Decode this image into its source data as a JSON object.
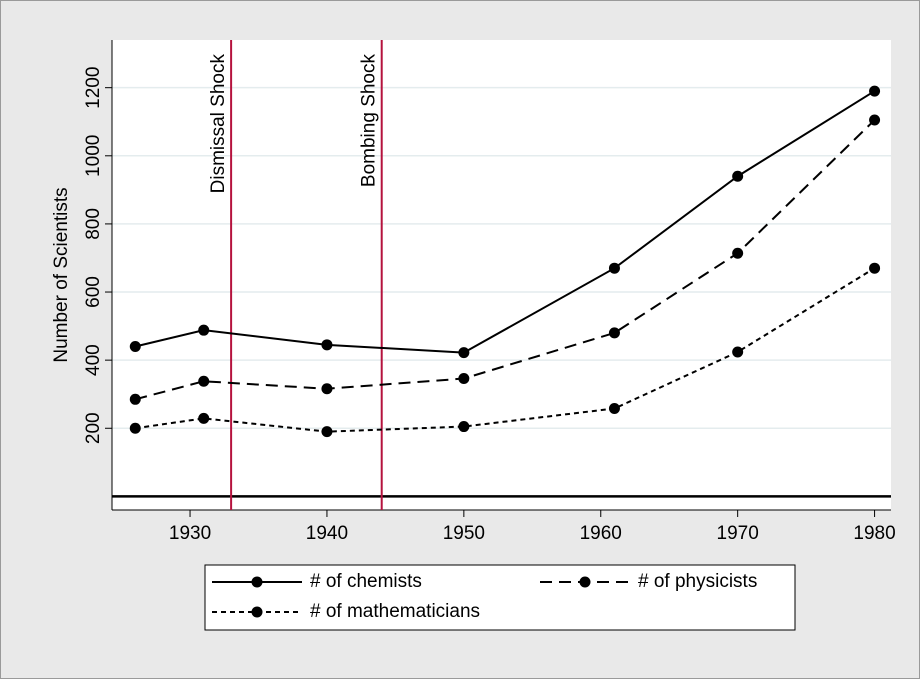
{
  "chart_data": {
    "type": "line",
    "y_label": "Number of Scientists",
    "x": [
      1926,
      1931,
      1940,
      1950,
      1961,
      1970,
      1980
    ],
    "series": [
      {
        "name": "# of chemists",
        "color": "#000000",
        "dash": "solid",
        "values": [
          440,
          488,
          445,
          422,
          670,
          940,
          1190
        ]
      },
      {
        "name": "# of physicists",
        "color": "#000000",
        "dash": "dash",
        "values": [
          285,
          338,
          316,
          346,
          480,
          714,
          1105
        ]
      },
      {
        "name": "# of mathematicians",
        "color": "#000000",
        "dash": "dot",
        "values": [
          200,
          229,
          190,
          205,
          258,
          424,
          670
        ]
      }
    ],
    "xlim": [
      1924.3,
      1981.2
    ],
    "xticks": [
      1930,
      1940,
      1950,
      1960,
      1970,
      1980
    ],
    "ylim": [
      -40,
      1340
    ],
    "yticks": [
      200,
      400,
      600,
      800,
      1000,
      1200
    ],
    "grid": true,
    "hline": 0,
    "vlines": [
      {
        "x": 1933,
        "label": "Dismissal Shock",
        "color": "#b5123e"
      },
      {
        "x": 1944,
        "label": "Bombing Shock",
        "color": "#b5123e"
      }
    ]
  }
}
